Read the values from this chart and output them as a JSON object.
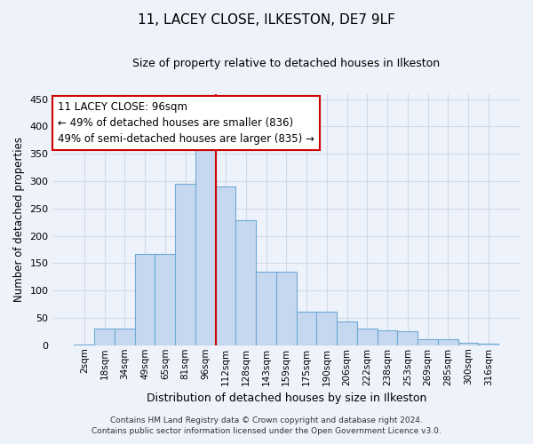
{
  "title": "11, LACEY CLOSE, ILKESTON, DE7 9LF",
  "subtitle": "Size of property relative to detached houses in Ilkeston",
  "xlabel": "Distribution of detached houses by size in Ilkeston",
  "ylabel": "Number of detached properties",
  "categories": [
    "2sqm",
    "18sqm",
    "34sqm",
    "49sqm",
    "65sqm",
    "81sqm",
    "96sqm",
    "112sqm",
    "128sqm",
    "143sqm",
    "159sqm",
    "175sqm",
    "190sqm",
    "206sqm",
    "222sqm",
    "238sqm",
    "253sqm",
    "269sqm",
    "285sqm",
    "300sqm",
    "316sqm"
  ],
  "bar_values": [
    2,
    30,
    30,
    167,
    167,
    295,
    370,
    290,
    228,
    135,
    135,
    62,
    62,
    43,
    30,
    28,
    25,
    11,
    11,
    5,
    3
  ],
  "bar_color": "#c5d8f0",
  "bar_edge_color": "#6faad4",
  "grid_color": "#d0dae8",
  "vline_color": "#cc0000",
  "vline_x": 6.5,
  "annotation_text": "11 LACEY CLOSE: 96sqm\n← 49% of detached houses are smaller (836)\n49% of semi-detached houses are larger (835) →",
  "annotation_box_edge": "#cc0000",
  "annotation_box_face": "#ffffff",
  "ylim": [
    0,
    460
  ],
  "yticks": [
    0,
    50,
    100,
    150,
    200,
    250,
    300,
    350,
    400,
    450
  ],
  "footnote1": "Contains HM Land Registry data © Crown copyright and database right 2024.",
  "footnote2": "Contains public sector information licensed under the Open Government Licence v3.0.",
  "bg_color": "#eef2fa",
  "title_fontsize": 11,
  "subtitle_fontsize": 9,
  "ylabel_fontsize": 8.5,
  "xlabel_fontsize": 9,
  "tick_fontsize": 7.5,
  "ytick_fontsize": 8,
  "footnote_fontsize": 6.5
}
